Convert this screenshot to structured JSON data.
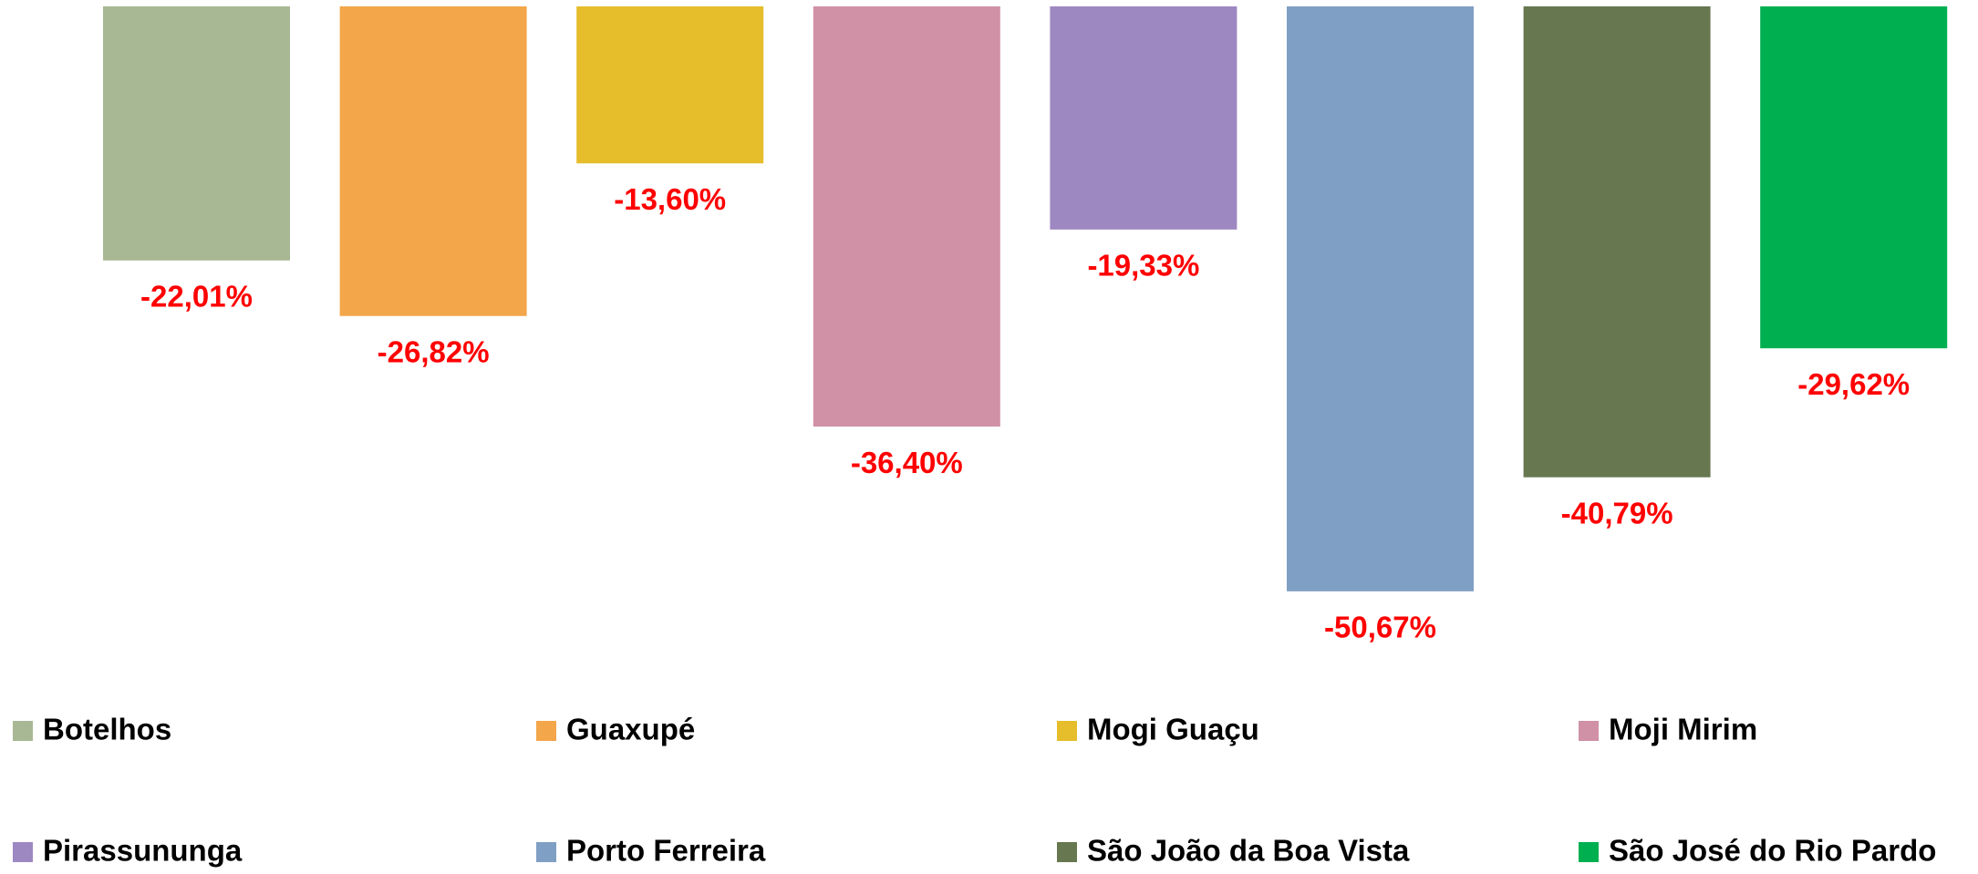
{
  "chart_data": {
    "type": "bar",
    "series": [
      {
        "name": "Botelhos",
        "color": "#a9b894",
        "values": [
          -22.01
        ],
        "value_labels": [
          "-22,01%"
        ]
      },
      {
        "name": "Guaxupé",
        "color": "#f3a64a",
        "values": [
          -26.82
        ],
        "value_labels": [
          "-26,82%"
        ]
      },
      {
        "name": "Mogi Guaçu",
        "color": "#e6bd2a",
        "values": [
          -13.6
        ],
        "value_labels": [
          "-13,60%"
        ]
      },
      {
        "name": "Moji Mirim",
        "color": "#d090a6",
        "values": [
          -36.4
        ],
        "value_labels": [
          "-36,40%"
        ]
      },
      {
        "name": "Pirassununga",
        "color": "#9e88c2",
        "values": [
          -19.33
        ],
        "value_labels": [
          "-19,33%"
        ]
      },
      {
        "name": "Porto Ferreira",
        "color": "#809fc4",
        "values": [
          -50.67
        ],
        "value_labels": [
          "-50,67%"
        ]
      },
      {
        "name": "São João da Boa Vista",
        "color": "#67774f",
        "values": [
          -40.79
        ],
        "value_labels": [
          "-40,79%"
        ]
      },
      {
        "name": "São José do Rio Pardo",
        "color": "#00b050",
        "values": [
          -29.62
        ],
        "value_labels": [
          "-29,62%"
        ]
      }
    ],
    "ylim": [
      -60,
      0
    ]
  }
}
